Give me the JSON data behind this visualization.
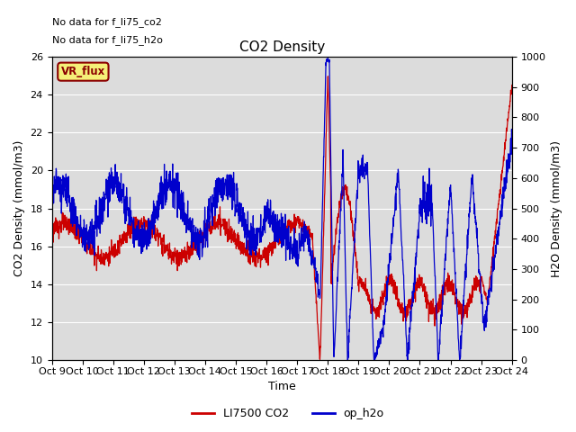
{
  "title": "CO2 Density",
  "xlabel": "Time",
  "ylabel_left": "CO2 Density (mmol/m3)",
  "ylabel_right": "H2O Density (mmol/m3)",
  "ylim_left": [
    10,
    26
  ],
  "ylim_right": [
    0,
    1000
  ],
  "xtick_labels": [
    "Oct 9",
    "Oct 10",
    "Oct 11",
    "Oct 12",
    "Oct 13",
    "Oct 14",
    "Oct 15",
    "Oct 16",
    "Oct 17",
    "Oct 18",
    "Oct 19",
    "Oct 20",
    "Oct 21",
    "Oct 22",
    "Oct 23",
    "Oct 24"
  ],
  "annotation_line1": "No data for f_li75_co2",
  "annotation_line2": "No data for f_li75_h2o",
  "vr_flux_label": "VR_flux",
  "legend_entries": [
    "LI7500 CO2",
    "op_h2o"
  ],
  "line_color_red": "#cc0000",
  "line_color_blue": "#0000cc",
  "bg_color": "#dcdcdc",
  "fig_bg": "#ffffff",
  "title_fontsize": 11,
  "axis_label_fontsize": 9,
  "tick_fontsize": 8,
  "annot_fontsize": 8,
  "legend_fontsize": 9,
  "grid_color": "#ffffff",
  "vr_box_facecolor": "#f5f078",
  "vr_box_edgecolor": "#8b0000",
  "vr_text_color": "#8b0000"
}
